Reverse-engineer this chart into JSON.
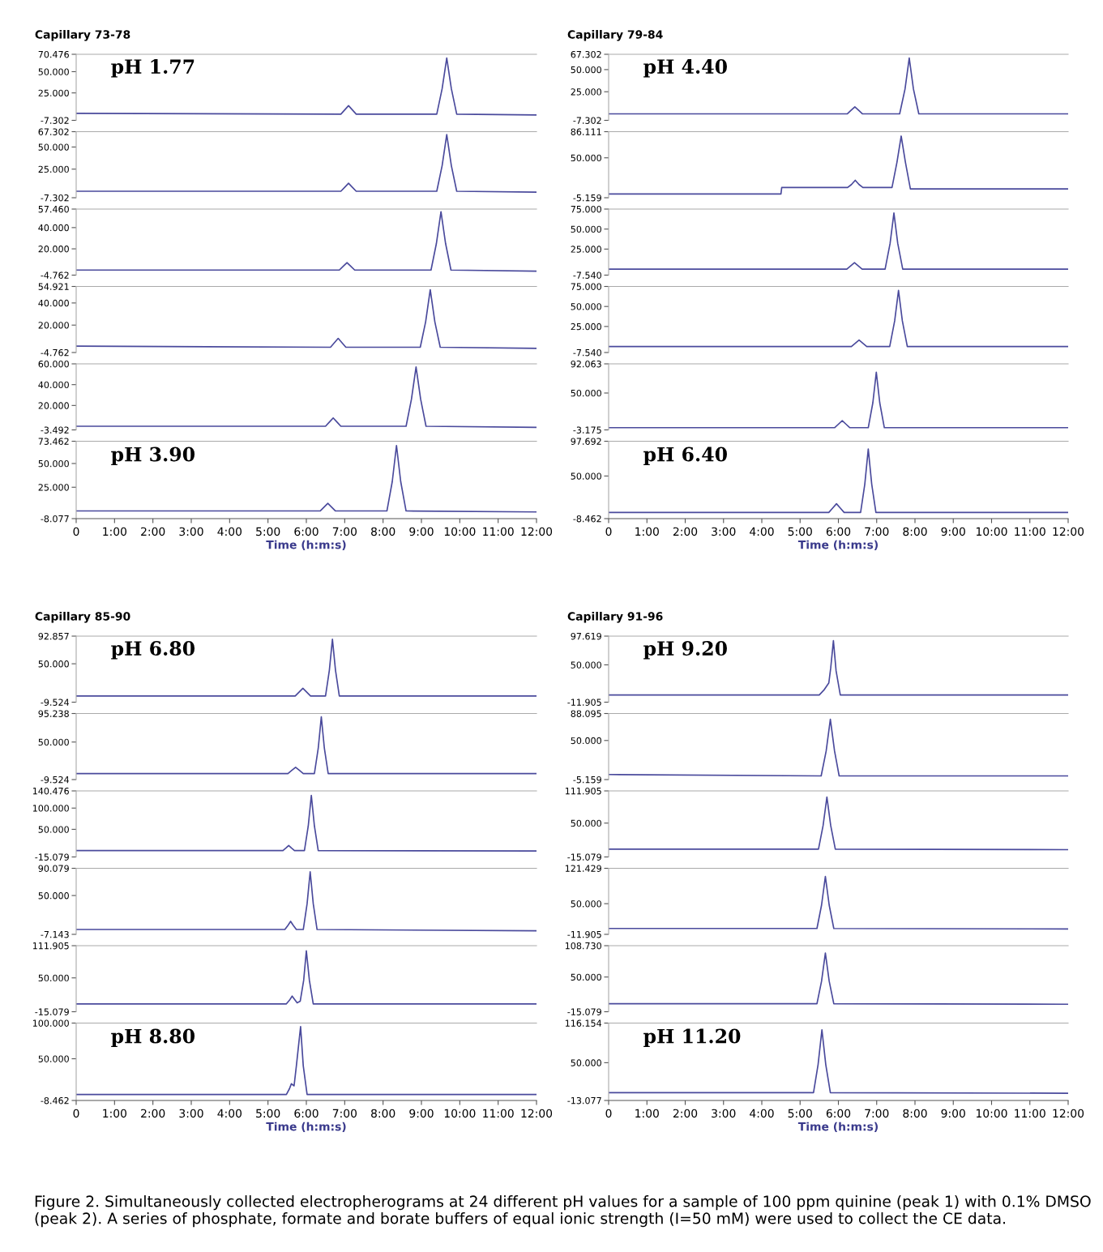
{
  "chart_data": [
    {
      "type": "line",
      "title": "Capillary 73-78",
      "color": "#4a4a9c",
      "xlim": [
        0,
        12
      ],
      "tick_labels": "y",
      "ylim": [
        -7.302,
        70.476
      ],
      "yticks": [
        {
          "value": -7.302,
          "label": "-7.302"
        },
        {
          "value": 25,
          "label": "25.000"
        },
        {
          "value": 50,
          "label": "50.000"
        },
        {
          "value": 70.476,
          "label": "70.476"
        }
      ],
      "annotations": [
        "pH 1.77"
      ],
      "x": [
        0,
        6.9,
        7.0,
        7.1,
        7.2,
        7.3,
        9.4,
        9.54,
        9.66,
        9.78,
        9.92,
        12
      ],
      "values": [
        1,
        0,
        5,
        10,
        5,
        0,
        0,
        30,
        66,
        30,
        0,
        -1
      ]
    },
    {
      "type": "line",
      "color": "#4a4a9c",
      "xlim": [
        0,
        12
      ],
      "tick_labels": "y",
      "ylim": [
        -7.302,
        67.302
      ],
      "yticks": [
        {
          "value": -7.302,
          "label": "-7.302"
        },
        {
          "value": 25,
          "label": "25.000"
        },
        {
          "value": 50,
          "label": "50.000"
        },
        {
          "value": 67.302,
          "label": "67.302"
        }
      ],
      "x": [
        0,
        6.9,
        7.0,
        7.1,
        7.2,
        7.3,
        9.4,
        9.54,
        9.66,
        9.78,
        9.92,
        12
      ],
      "values": [
        0,
        0,
        4.5,
        9,
        4.5,
        0,
        0,
        29,
        64,
        29,
        0,
        -1
      ]
    },
    {
      "type": "line",
      "color": "#4a4a9c",
      "xlim": [
        0,
        12
      ],
      "tick_labels": "y",
      "ylim": [
        -4.762,
        57.46
      ],
      "yticks": [
        {
          "value": -4.762,
          "label": "-4.762"
        },
        {
          "value": 20,
          "label": "20.000"
        },
        {
          "value": 40,
          "label": "40.000"
        },
        {
          "value": 57.46,
          "label": "57.460"
        }
      ],
      "x": [
        0,
        6.86,
        6.96,
        7.06,
        7.16,
        7.26,
        9.25,
        9.39,
        9.51,
        9.63,
        9.77,
        12
      ],
      "values": [
        0,
        0,
        3.5,
        7,
        3.5,
        0,
        0,
        25,
        55,
        25,
        0,
        -1
      ]
    },
    {
      "type": "line",
      "color": "#4a4a9c",
      "xlim": [
        0,
        12
      ],
      "tick_labels": "y",
      "ylim": [
        -4.762,
        54.921
      ],
      "yticks": [
        {
          "value": -4.762,
          "label": "-4.762"
        },
        {
          "value": 20,
          "label": "20.000"
        },
        {
          "value": 40,
          "label": "40.000"
        },
        {
          "value": 54.921,
          "label": "54.921"
        }
      ],
      "x": [
        0,
        6.63,
        6.73,
        6.83,
        6.93,
        7.03,
        8.97,
        9.11,
        9.23,
        9.35,
        9.49,
        12
      ],
      "values": [
        1,
        0,
        4,
        8,
        4,
        0,
        0,
        23,
        52,
        23,
        0,
        -1
      ]
    },
    {
      "type": "line",
      "color": "#4a4a9c",
      "xlim": [
        0,
        12
      ],
      "tick_labels": "y",
      "ylim": [
        -3.492,
        60
      ],
      "yticks": [
        {
          "value": -3.492,
          "label": "-3.492"
        },
        {
          "value": 20,
          "label": "20.000"
        },
        {
          "value": 40,
          "label": "40.000"
        },
        {
          "value": 60,
          "label": "60.000"
        }
      ],
      "x": [
        0,
        6.5,
        6.6,
        6.7,
        6.8,
        6.9,
        8.6,
        8.74,
        8.86,
        8.98,
        9.12,
        12
      ],
      "values": [
        0,
        0,
        4,
        8,
        4,
        0,
        0,
        26,
        57,
        26,
        0,
        -1
      ]
    },
    {
      "type": "line",
      "xlabel": "Time (h:m:s)",
      "color": "#4a4a9c",
      "xlim": [
        0,
        12
      ],
      "xticks": [
        0,
        {
          "value": 1,
          "label": "1:00"
        },
        {
          "value": 2,
          "label": "2:00"
        },
        {
          "value": 3,
          "label": "3:00"
        },
        {
          "value": 4,
          "label": "4:00"
        },
        {
          "value": 5,
          "label": "5:00"
        },
        {
          "value": 6,
          "label": "6:00"
        },
        {
          "value": 7,
          "label": "7:00"
        },
        {
          "value": 8,
          "label": "8:00"
        },
        {
          "value": 9,
          "label": "9:00"
        },
        {
          "value": 10,
          "label": "10:00"
        },
        {
          "value": 11,
          "label": "11:00"
        },
        {
          "value": 12,
          "label": "12:00"
        }
      ],
      "ylim": [
        -8.077,
        73.462
      ],
      "yticks": [
        {
          "value": -8.077,
          "label": "-8.077"
        },
        {
          "value": 25,
          "label": "25.000"
        },
        {
          "value": 50,
          "label": "50.000"
        },
        {
          "value": 73.462,
          "label": "73.462"
        }
      ],
      "annotations": [
        "pH 3.90"
      ],
      "x": [
        0,
        6.36,
        6.46,
        6.56,
        6.66,
        6.76,
        8.1,
        8.24,
        8.35,
        8.46,
        8.6,
        12
      ],
      "values": [
        0,
        0,
        4,
        8,
        4,
        0,
        0,
        31,
        69,
        31,
        0,
        -1
      ]
    },
    {
      "type": "line",
      "title": "Capillary 79-84",
      "color": "#4a4a9c",
      "xlim": [
        0,
        12
      ],
      "tick_labels": "y",
      "ylim": [
        -7.302,
        67.302
      ],
      "yticks": [
        {
          "value": -7.302,
          "label": "-7.302"
        },
        {
          "value": 25,
          "label": "25.000"
        },
        {
          "value": 50,
          "label": "50.000"
        },
        {
          "value": 67.302,
          "label": "67.302"
        }
      ],
      "annotations": [
        "pH 4.40"
      ],
      "x": [
        0,
        6.23,
        6.33,
        6.43,
        6.53,
        6.63,
        7.6,
        7.74,
        7.85,
        7.96,
        8.1,
        12
      ],
      "values": [
        0,
        0,
        4,
        8,
        4,
        0,
        0,
        28,
        63,
        28,
        0,
        0
      ]
    },
    {
      "type": "line",
      "color": "#4a4a9c",
      "xlim": [
        0,
        12
      ],
      "tick_labels": "y",
      "ylim": [
        -5.159,
        86.111
      ],
      "yticks": [
        {
          "value": -5.159,
          "label": "-5.159"
        },
        {
          "value": 50,
          "label": "50.000"
        },
        {
          "value": 86.111,
          "label": "86.111"
        }
      ],
      "x": [
        0,
        4.5,
        4.52,
        6.24,
        6.34,
        6.44,
        6.54,
        6.64,
        7.4,
        7.53,
        7.64,
        7.75,
        7.88,
        12
      ],
      "values": [
        0,
        0,
        9,
        9,
        13,
        19,
        13,
        9,
        9,
        44,
        80,
        44,
        7,
        7
      ]
    },
    {
      "type": "line",
      "color": "#4a4a9c",
      "xlim": [
        0,
        12
      ],
      "tick_labels": "y",
      "ylim": [
        -7.54,
        75
      ],
      "yticks": [
        {
          "value": -7.54,
          "label": "-7.540"
        },
        {
          "value": 25,
          "label": "25.000"
        },
        {
          "value": 50,
          "label": "50.000"
        },
        {
          "value": 75,
          "label": "75.000"
        }
      ],
      "x": [
        0,
        6.22,
        6.32,
        6.42,
        6.52,
        6.62,
        7.22,
        7.35,
        7.45,
        7.55,
        7.68,
        12
      ],
      "values": [
        0,
        0,
        4,
        8,
        4,
        0,
        0,
        32,
        70,
        32,
        0,
        0
      ]
    },
    {
      "type": "line",
      "color": "#4a4a9c",
      "xlim": [
        0,
        12
      ],
      "tick_labels": "y",
      "ylim": [
        -7.54,
        75
      ],
      "yticks": [
        {
          "value": -7.54,
          "label": "-7.540"
        },
        {
          "value": 25,
          "label": "25.000"
        },
        {
          "value": 50,
          "label": "50.000"
        },
        {
          "value": 75,
          "label": "75.000"
        }
      ],
      "x": [
        0,
        6.34,
        6.44,
        6.54,
        6.64,
        6.74,
        7.34,
        7.47,
        7.57,
        7.67,
        7.8,
        12
      ],
      "values": [
        0,
        0,
        4,
        8,
        4,
        0,
        0,
        32,
        70,
        32,
        0,
        0
      ]
    },
    {
      "type": "line",
      "color": "#4a4a9c",
      "xlim": [
        0,
        12
      ],
      "tick_labels": "y",
      "ylim": [
        -3.175,
        92.063
      ],
      "yticks": [
        {
          "value": -3.175,
          "label": "-3.175"
        },
        {
          "value": 50,
          "label": "50.000"
        },
        {
          "value": 92.063,
          "label": "92.063"
        }
      ],
      "x": [
        0,
        5.9,
        6.0,
        6.1,
        6.2,
        6.3,
        6.78,
        6.9,
        6.99,
        7.08,
        7.2,
        12
      ],
      "values": [
        0,
        0,
        5,
        10,
        5,
        0,
        0,
        36,
        80,
        36,
        0,
        0
      ]
    },
    {
      "type": "line",
      "xlabel": "Time (h:m:s)",
      "color": "#4a4a9c",
      "xlim": [
        0,
        12
      ],
      "xticks": [
        0,
        {
          "value": 1,
          "label": "1:00"
        },
        {
          "value": 2,
          "label": "2:00"
        },
        {
          "value": 3,
          "label": "3:00"
        },
        {
          "value": 4,
          "label": "4:00"
        },
        {
          "value": 5,
          "label": "5:00"
        },
        {
          "value": 6,
          "label": "6:00"
        },
        {
          "value": 7,
          "label": "7:00"
        },
        {
          "value": 8,
          "label": "8:00"
        },
        {
          "value": 9,
          "label": "9:00"
        },
        {
          "value": 10,
          "label": "10:00"
        },
        {
          "value": 11,
          "label": "11:00"
        },
        {
          "value": 12,
          "label": "12:00"
        }
      ],
      "ylim": [
        -8.462,
        97.692
      ],
      "yticks": [
        {
          "value": -8.462,
          "label": "-8.462"
        },
        {
          "value": 50,
          "label": "50.000"
        },
        {
          "value": 97.692,
          "label": "97.692"
        }
      ],
      "annotations": [
        "pH 6.40"
      ],
      "x": [
        0,
        5.75,
        5.85,
        5.95,
        6.05,
        6.15,
        6.58,
        6.69,
        6.78,
        6.87,
        6.98,
        12
      ],
      "values": [
        0,
        0,
        6,
        12,
        6,
        0,
        0,
        39,
        87,
        39,
        0,
        0
      ]
    },
    {
      "type": "line",
      "title": "Capillary 85-90",
      "color": "#4a4a9c",
      "xlim": [
        0,
        12
      ],
      "tick_labels": "y",
      "ylim": [
        -9.524,
        92.857
      ],
      "yticks": [
        {
          "value": -9.524,
          "label": "-9.524"
        },
        {
          "value": 50,
          "label": "50.000"
        },
        {
          "value": 92.857,
          "label": "92.857"
        }
      ],
      "annotations": [
        "pH 6.80"
      ],
      "x": [
        0,
        5.71,
        5.81,
        5.91,
        6.01,
        6.11,
        6.5,
        6.6,
        6.68,
        6.76,
        6.86,
        12
      ],
      "values": [
        0,
        0,
        6,
        12,
        6,
        0,
        0,
        40,
        88,
        40,
        0,
        0
      ]
    },
    {
      "type": "line",
      "color": "#4a4a9c",
      "xlim": [
        0,
        12
      ],
      "tick_labels": "y",
      "ylim": [
        -9.524,
        95.238
      ],
      "yticks": [
        {
          "value": -9.524,
          "label": "-9.524"
        },
        {
          "value": 50,
          "label": "50.000"
        },
        {
          "value": 95.238,
          "label": "95.238"
        }
      ],
      "x": [
        0,
        5.52,
        5.62,
        5.72,
        5.82,
        5.92,
        6.21,
        6.31,
        6.39,
        6.47,
        6.57,
        12
      ],
      "values": [
        0,
        0,
        5,
        10,
        5,
        0,
        0,
        40,
        90,
        40,
        0,
        0
      ]
    },
    {
      "type": "line",
      "color": "#4a4a9c",
      "xlim": [
        0,
        12
      ],
      "tick_labels": "y",
      "ylim": [
        -15.079,
        140.476
      ],
      "yticks": [
        {
          "value": -15.079,
          "label": "-15.079"
        },
        {
          "value": 50,
          "label": "50.000"
        },
        {
          "value": 100,
          "label": "100.000"
        },
        {
          "value": 140.476,
          "label": "140.476"
        }
      ],
      "x": [
        0,
        5.39,
        5.47,
        5.54,
        5.61,
        5.69,
        5.95,
        6.05,
        6.13,
        6.21,
        6.31,
        12
      ],
      "values": [
        0,
        0,
        6,
        12,
        6,
        0,
        0,
        58,
        130,
        58,
        0,
        -1
      ]
    },
    {
      "type": "line",
      "color": "#4a4a9c",
      "xlim": [
        0,
        12
      ],
      "tick_labels": "y",
      "ylim": [
        -7.143,
        90.079
      ],
      "yticks": [
        {
          "value": -7.143,
          "label": "-7.143"
        },
        {
          "value": 50,
          "label": "50.000"
        },
        {
          "value": 90.079,
          "label": "90.079"
        }
      ],
      "x": [
        0,
        5.44,
        5.52,
        5.59,
        5.66,
        5.74,
        5.92,
        6.02,
        6.1,
        6.18,
        6.28,
        12
      ],
      "values": [
        0,
        0,
        6,
        12,
        6,
        0,
        0,
        38,
        85,
        38,
        0,
        -2
      ]
    },
    {
      "type": "line",
      "color": "#4a4a9c",
      "xlim": [
        0,
        12
      ],
      "tick_labels": "y",
      "ylim": [
        -15.079,
        111.905
      ],
      "yticks": [
        {
          "value": -15.079,
          "label": "-15.079"
        },
        {
          "value": 50,
          "label": "50.000"
        },
        {
          "value": 111.905,
          "label": "111.905"
        }
      ],
      "x": [
        0,
        5.48,
        5.56,
        5.63,
        5.7,
        5.76,
        5.84,
        5.93,
        6.0,
        6.08,
        6.18,
        12
      ],
      "values": [
        0,
        0,
        7,
        15,
        8,
        2,
        5,
        45,
        102,
        45,
        0,
        0
      ]
    },
    {
      "type": "line",
      "xlabel": "Time (h:m:s)",
      "color": "#4a4a9c",
      "xlim": [
        0,
        12
      ],
      "xticks": [
        0,
        {
          "value": 1,
          "label": "1:00"
        },
        {
          "value": 2,
          "label": "2:00"
        },
        {
          "value": 3,
          "label": "3:00"
        },
        {
          "value": 4,
          "label": "4:00"
        },
        {
          "value": 5,
          "label": "5:00"
        },
        {
          "value": 6,
          "label": "6:00"
        },
        {
          "value": 7,
          "label": "7:00"
        },
        {
          "value": 8,
          "label": "8:00"
        },
        {
          "value": 9,
          "label": "9:00"
        },
        {
          "value": 10,
          "label": "10:00"
        },
        {
          "value": 11,
          "label": "11:00"
        },
        {
          "value": 12,
          "label": "12:00"
        }
      ],
      "ylim": [
        -8.462,
        100
      ],
      "yticks": [
        {
          "value": -8.462,
          "label": "-8.462"
        },
        {
          "value": 50,
          "label": "50.000"
        },
        {
          "value": 100,
          "label": "100.000"
        }
      ],
      "annotations": [
        "pH 8.80"
      ],
      "x": [
        0,
        5.48,
        5.56,
        5.61,
        5.68,
        5.74,
        5.85,
        5.92,
        6.02,
        12
      ],
      "values": [
        0,
        0,
        8,
        15,
        12,
        40,
        95,
        40,
        0,
        0
      ]
    },
    {
      "type": "line",
      "title": "Capillary 91-96",
      "color": "#4a4a9c",
      "xlim": [
        0,
        12
      ],
      "tick_labels": "y",
      "ylim": [
        -11.905,
        97.619
      ],
      "yticks": [
        {
          "value": -11.905,
          "label": "-11.905"
        },
        {
          "value": 50,
          "label": "50.000"
        },
        {
          "value": 97.619,
          "label": "97.619"
        }
      ],
      "annotations": [
        "pH 9.20"
      ],
      "x": [
        0,
        5.5,
        5.62,
        5.75,
        5.8,
        5.87,
        5.94,
        6.05,
        12
      ],
      "values": [
        0,
        0,
        8,
        20,
        45,
        90,
        40,
        0,
        0
      ]
    },
    {
      "type": "line",
      "color": "#4a4a9c",
      "xlim": [
        0,
        12
      ],
      "tick_labels": "y",
      "ylim": [
        -5.159,
        88.095
      ],
      "yticks": [
        {
          "value": -5.159,
          "label": "-5.159"
        },
        {
          "value": 50,
          "label": "50.000"
        },
        {
          "value": 88.095,
          "label": "88.095"
        }
      ],
      "x": [
        0,
        5.55,
        5.68,
        5.79,
        5.9,
        6.02,
        12
      ],
      "values": [
        2,
        0,
        35,
        80,
        35,
        0,
        0
      ]
    },
    {
      "type": "line",
      "color": "#4a4a9c",
      "xlim": [
        0,
        12
      ],
      "tick_labels": "y",
      "ylim": [
        -15.079,
        111.905
      ],
      "yticks": [
        {
          "value": -15.079,
          "label": "-15.079"
        },
        {
          "value": 50,
          "label": "50.000"
        },
        {
          "value": 111.905,
          "label": "111.905"
        }
      ],
      "x": [
        0,
        5.48,
        5.6,
        5.7,
        5.8,
        5.92,
        12
      ],
      "values": [
        0,
        0,
        45,
        100,
        45,
        0,
        -1
      ]
    },
    {
      "type": "line",
      "color": "#4a4a9c",
      "xlim": [
        0,
        12
      ],
      "tick_labels": "y",
      "ylim": [
        -11.905,
        121.429
      ],
      "yticks": [
        {
          "value": -11.905,
          "label": "-11.905"
        },
        {
          "value": 50,
          "label": "50.000"
        },
        {
          "value": 121.429,
          "label": "121.429"
        }
      ],
      "x": [
        0,
        5.44,
        5.56,
        5.66,
        5.76,
        5.88,
        12
      ],
      "values": [
        0,
        0,
        47,
        105,
        47,
        0,
        -1
      ]
    },
    {
      "type": "line",
      "color": "#4a4a9c",
      "xlim": [
        0,
        12
      ],
      "tick_labels": "y",
      "ylim": [
        -15.079,
        108.73
      ],
      "yticks": [
        {
          "value": -15.079,
          "label": "-15.079"
        },
        {
          "value": 50,
          "label": "50.000"
        },
        {
          "value": 108.73,
          "label": "108.730"
        }
      ],
      "x": [
        0,
        5.44,
        5.56,
        5.66,
        5.76,
        5.88,
        12
      ],
      "values": [
        0,
        0,
        42,
        95,
        42,
        0,
        -1
      ]
    },
    {
      "type": "line",
      "xlabel": "Time (h:m:s)",
      "color": "#4a4a9c",
      "xlim": [
        0,
        12
      ],
      "xticks": [
        0,
        {
          "value": 1,
          "label": "1:00"
        },
        {
          "value": 2,
          "label": "2:00"
        },
        {
          "value": 3,
          "label": "3:00"
        },
        {
          "value": 4,
          "label": "4:00"
        },
        {
          "value": 5,
          "label": "5:00"
        },
        {
          "value": 6,
          "label": "6:00"
        },
        {
          "value": 7,
          "label": "7:00"
        },
        {
          "value": 8,
          "label": "8:00"
        },
        {
          "value": 9,
          "label": "9:00"
        },
        {
          "value": 10,
          "label": "10:00"
        },
        {
          "value": 11,
          "label": "11:00"
        },
        {
          "value": 12,
          "label": "12:00"
        }
      ],
      "ylim": [
        -13.077,
        116.154
      ],
      "yticks": [
        {
          "value": -13.077,
          "label": "-13.077"
        },
        {
          "value": 50,
          "label": "50.000"
        },
        {
          "value": 116.154,
          "label": "116.154"
        }
      ],
      "annotations": [
        "pH 11.20",
        "Figure 2. Simultaneously collected electropherograms at 24 different pH values for a sample of 100 ppm quinine (peak 1) with 0.1% DMSO (peak 2). A series of phosphate, formate and borate buffers of equal ionic strength (I=50 mM) were used to collect the CE data."
      ],
      "x": [
        0,
        5.35,
        5.47,
        5.57,
        5.67,
        5.79,
        12
      ],
      "values": [
        0,
        0,
        47,
        105,
        47,
        0,
        -1
      ]
    }
  ]
}
